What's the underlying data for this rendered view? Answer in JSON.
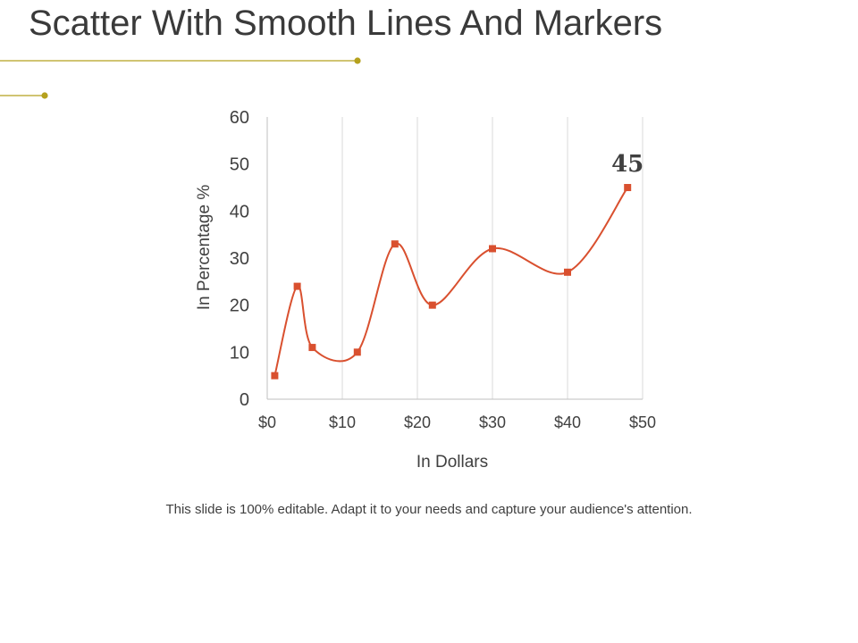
{
  "slide": {
    "title": "Scatter With Smooth Lines And Markers",
    "caption": "This slide is 100% editable. Adapt it to your needs and capture your audience's attention.",
    "accent_color": "#b5a11d"
  },
  "chart_data": {
    "type": "scatter",
    "title": "",
    "xlabel": "In Dollars",
    "ylabel": "In Percentage %",
    "xlim": [
      0,
      50
    ],
    "ylim": [
      0,
      60
    ],
    "x_ticks": [
      0,
      10,
      20,
      30,
      40,
      50
    ],
    "x_tick_labels": [
      "$0",
      "$10",
      "$20",
      "$30",
      "$40",
      "$50"
    ],
    "y_ticks": [
      0,
      10,
      20,
      30,
      40,
      50,
      60
    ],
    "y_tick_labels": [
      "0",
      "10",
      "20",
      "30",
      "40",
      "50",
      "60"
    ],
    "grid": "vertical",
    "legend": "none",
    "smooth": true,
    "series": [
      {
        "color": "#d9502f",
        "marker": "square",
        "x": [
          1,
          4,
          6,
          12,
          17,
          22,
          30,
          40,
          48
        ],
        "y": [
          5,
          24,
          11,
          10,
          33,
          20,
          32,
          27,
          45
        ]
      }
    ],
    "annotations": [
      {
        "text": "45",
        "x": 48,
        "y": 45
      }
    ]
  }
}
